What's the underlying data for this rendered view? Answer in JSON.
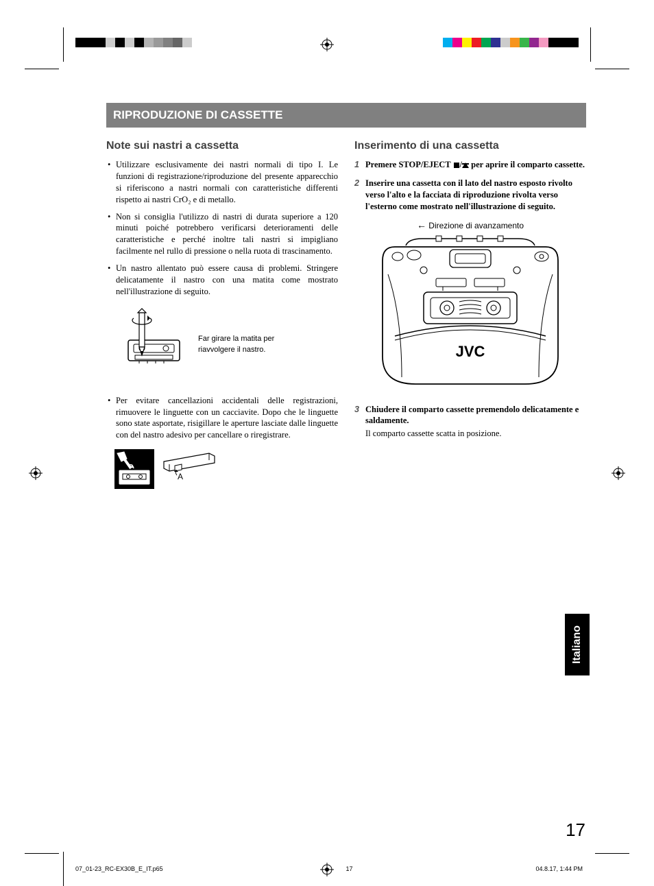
{
  "printer_marks": {
    "left_blocks": [
      {
        "color": "#000000",
        "width": 44
      },
      {
        "color": "#cccccc",
        "width": 14
      },
      {
        "color": "#000000",
        "width": 14
      },
      {
        "color": "#cccccc",
        "width": 14
      },
      {
        "color": "#000000",
        "width": 14
      },
      {
        "color": "#b3b3b3",
        "width": 14
      },
      {
        "color": "#999999",
        "width": 14
      },
      {
        "color": "#808080",
        "width": 14
      },
      {
        "color": "#666666",
        "width": 14
      },
      {
        "color": "#cccccc",
        "width": 14
      }
    ],
    "right_blocks": [
      {
        "color": "#00aeef",
        "width": 14
      },
      {
        "color": "#ec008c",
        "width": 14
      },
      {
        "color": "#fff200",
        "width": 14
      },
      {
        "color": "#ed1c24",
        "width": 14
      },
      {
        "color": "#00a651",
        "width": 14
      },
      {
        "color": "#2e3192",
        "width": 14
      },
      {
        "color": "#cccccc",
        "width": 14
      },
      {
        "color": "#f7941d",
        "width": 14
      },
      {
        "color": "#39b54a",
        "width": 14
      },
      {
        "color": "#92278f",
        "width": 14
      },
      {
        "color": "#f49ac1",
        "width": 14
      },
      {
        "color": "#000000",
        "width": 44
      }
    ]
  },
  "section_title": "RIPRODUZIONE DI CASSETTE",
  "left_column": {
    "heading": "Note sui nastri a cassetta",
    "bullets": [
      "Utilizzare esclusivamente dei nastri normali di tipo I. Le funzioni di registrazione/riproduzione del presente apparecchio si riferiscono a nastri normali con caratteristiche differenti rispetto ai nastri CrO₂ e di metallo.",
      "Non si consiglia l'utilizzo di nastri di durata superiore a 120 minuti poiché potrebbero verificarsi deterioramenti delle caratteristiche e perché inoltre tali nastri si impigliano facilmente nel rullo di pressione o nella ruota di trascinamento.",
      "Un nastro allentato può essere causa di problemi. Stringere delicatamente il nastro con una matita come mostrato nell'illustrazione di seguito."
    ],
    "fig1_caption": "Far girare la matita per riavvolgere il nastro.",
    "bullets2": [
      "Per evitare cancellazioni accidentali delle registrazioni, rimuovere le linguette con un cacciavite. Dopo che le linguette sono state asportate, risigillare le aperture lasciate dalle linguette con del nastro adesivo per cancellare o riregistrare."
    ]
  },
  "right_column": {
    "heading": "Inserimento di una cassetta",
    "steps": [
      {
        "num": "1",
        "text_before": "Premere STOP/EJECT ",
        "text_after": " per aprire il comparto cassette."
      },
      {
        "num": "2",
        "text": "Inserire una cassetta con il lato del nastro esposto rivolto verso l'alto e la facciata di riproduzione rivolta verso l'esterno come mostrato nell'illustrazione di seguito."
      },
      {
        "num": "3",
        "text": "Chiudere il comparto cassette premendolo delicatamente e saldamente.",
        "sub": "Il comparto cassette scatta in posizione."
      }
    ],
    "direction_label": "Direzione di avanzamento",
    "device_brand": "JVC"
  },
  "language_tab": "Italiano",
  "page_number": "17",
  "footer": {
    "file": "07_01-23_RC-EX30B_E_IT.p65",
    "page": "17",
    "timestamp": "04.8.17, 1:44 PM"
  },
  "colors": {
    "banner_bg": "#808080",
    "banner_fg": "#ffffff",
    "heading_fg": "#404040",
    "text_fg": "#000000",
    "tab_bg": "#000000",
    "tab_fg": "#ffffff"
  }
}
